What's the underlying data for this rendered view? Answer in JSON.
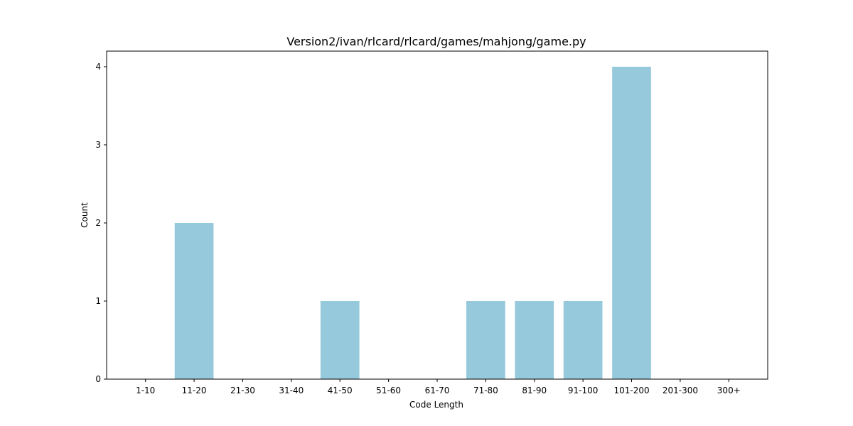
{
  "chart_data": {
    "type": "bar",
    "title": "Version2/ivan/rlcard/rlcard/games/mahjong/game.py",
    "xlabel": "Code Length",
    "ylabel": "Count",
    "categories": [
      "1-10",
      "11-20",
      "21-30",
      "31-40",
      "41-50",
      "51-60",
      "61-70",
      "71-80",
      "81-90",
      "91-100",
      "101-200",
      "201-300",
      "300+"
    ],
    "values": [
      0,
      2,
      0,
      0,
      1,
      0,
      0,
      1,
      1,
      1,
      4,
      0,
      0
    ],
    "ylim": [
      0,
      4.2
    ],
    "yticks": [
      0,
      1,
      2,
      3,
      4
    ],
    "grid": false,
    "bar_color": "#96c9dc"
  }
}
